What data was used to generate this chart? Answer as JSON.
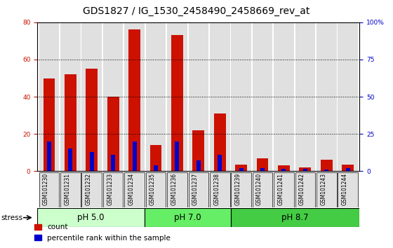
{
  "title": "GDS1827 / IG_1530_2458490_2458669_rev_at",
  "samples": [
    "GSM101230",
    "GSM101231",
    "GSM101232",
    "GSM101233",
    "GSM101234",
    "GSM101235",
    "GSM101236",
    "GSM101237",
    "GSM101238",
    "GSM101239",
    "GSM101240",
    "GSM101241",
    "GSM101242",
    "GSM101243",
    "GSM101244"
  ],
  "count_values": [
    50,
    52,
    55,
    40,
    76,
    14,
    73,
    22,
    31,
    3.5,
    7,
    3,
    2,
    6,
    3.5
  ],
  "percentile_values": [
    16,
    12,
    10.4,
    8.8,
    16,
    3.2,
    16,
    5.6,
    8.8,
    1.6,
    1.6,
    1.2,
    1.2,
    0.8,
    1.6
  ],
  "groups": [
    {
      "label": "pH 5.0",
      "start": 0,
      "end": 5,
      "color": "#ccffcc"
    },
    {
      "label": "pH 7.0",
      "start": 5,
      "end": 9,
      "color": "#66ee66"
    },
    {
      "label": "pH 8.7",
      "start": 9,
      "end": 15,
      "color": "#44cc44"
    }
  ],
  "stress_label": "stress",
  "ylim_left": [
    0,
    80
  ],
  "ylim_right": [
    0,
    100
  ],
  "yticks_left": [
    0,
    20,
    40,
    60,
    80
  ],
  "yticks_right": [
    0,
    25,
    50,
    75,
    100
  ],
  "yticklabels_right": [
    "0",
    "25",
    "50",
    "75",
    "100%"
  ],
  "count_color": "#cc1100",
  "percentile_color": "#0000cc",
  "bar_bg_color": "#e0e0e0",
  "plot_bg_color": "#ffffff",
  "grid_color": "#000000",
  "count_bar_width": 0.55,
  "percentile_bar_width": 0.2,
  "title_fontsize": 10,
  "tick_fontsize": 6.5,
  "legend_fontsize": 7.5,
  "group_label_fontsize": 8.5,
  "stress_fontsize": 7.5
}
